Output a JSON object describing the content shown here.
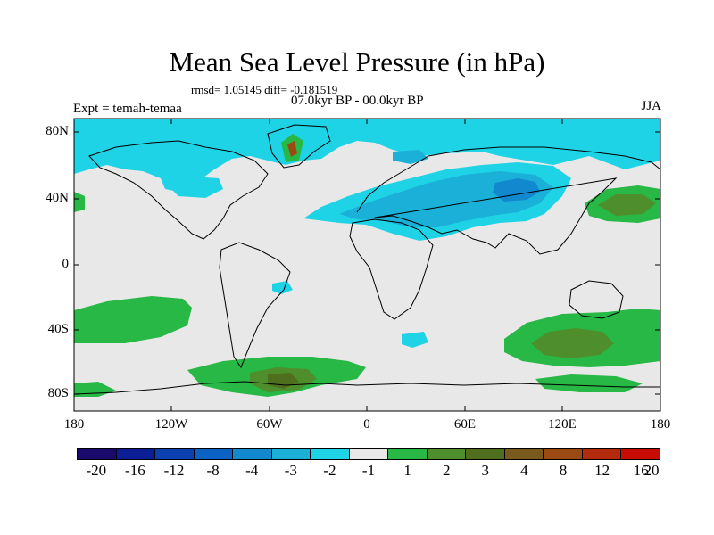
{
  "title": "Mean Sea Level Pressure (in hPa)",
  "stats": "rmsd= 1.05145 diff= -0.181519",
  "period": "07.0kyr BP - 00.0kyr BP",
  "experiment": "Expt = temah-temaa",
  "season": "JJA",
  "y_ticks": [
    "80N",
    "40N",
    "0",
    "40S",
    "80S"
  ],
  "x_ticks": [
    "180",
    "120W",
    "60W",
    "0",
    "60E",
    "120E",
    "180"
  ],
  "colorbar": {
    "colors": [
      "#1a0a6e",
      "#0b1e96",
      "#0c3fb0",
      "#0a62c4",
      "#1288cf",
      "#1ab0d8",
      "#1fd3e6",
      "#e8e8e8",
      "#27b845",
      "#4e8e2c",
      "#4f6e1e",
      "#7a5a1c",
      "#9c4a14",
      "#b42a0c",
      "#c80c04"
    ],
    "labels": [
      "-20",
      "-16",
      "-12",
      "-8",
      "-4",
      "-3",
      "-2",
      "-1",
      "1",
      "2",
      "3",
      "4",
      "8",
      "12",
      "16",
      "20"
    ]
  },
  "colors": {
    "neutral": "#e8e8e8",
    "cyan": "#1fd3e6",
    "blue_light": "#1ab0d8",
    "blue_mid": "#1288cf",
    "green": "#27b845",
    "green_dark": "#4e8e2c",
    "olive": "#4f6e1e"
  }
}
